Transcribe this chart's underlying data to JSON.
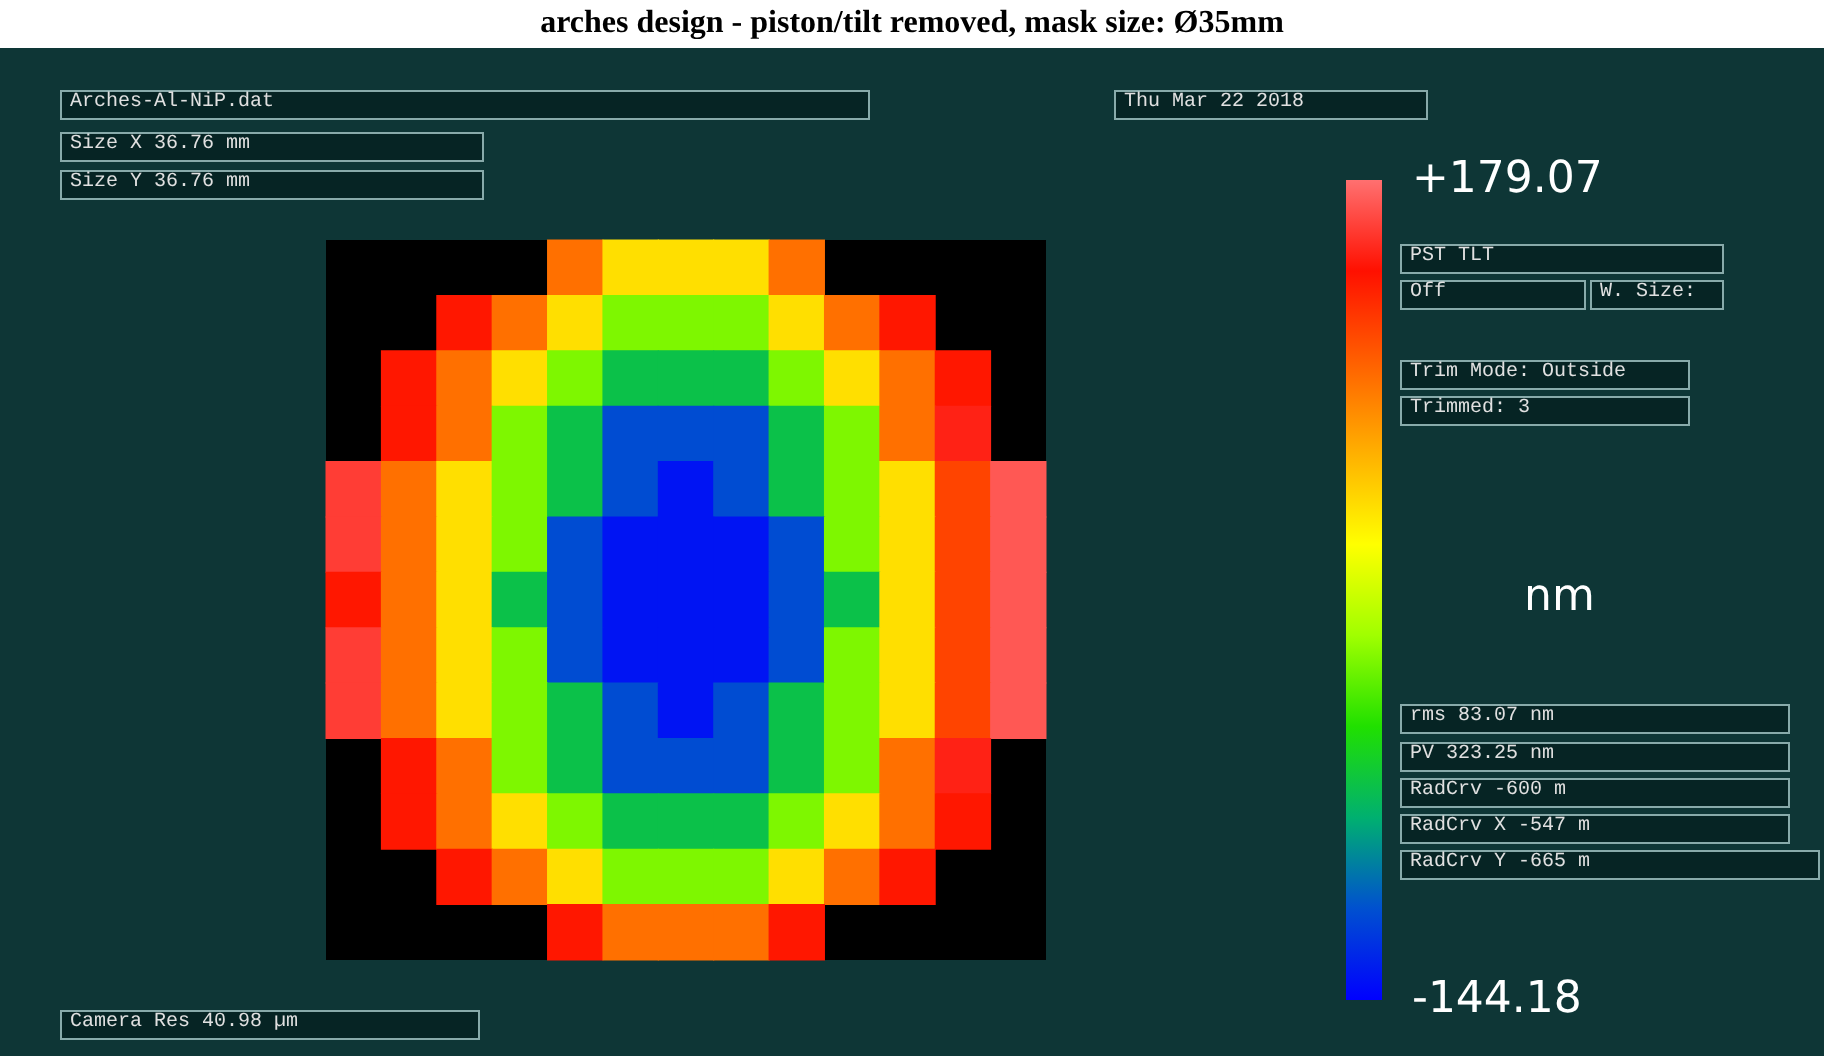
{
  "chart_data": {
    "type": "heatmap",
    "title": "arches design - piston/tilt removed, mask size: Ø35mm",
    "clabel": "nm",
    "categories": [
      null,
      null,
      null,
      null,
      null,
      null,
      null,
      null,
      null,
      null,
      null,
      null,
      null
    ],
    "y_categories": [
      null,
      null,
      null,
      null,
      null,
      null,
      null,
      null,
      null,
      null,
      null,
      null,
      null
    ],
    "clim": [
      -144.18,
      179.07
    ],
    "cticks": [
      {
        "value": 179.07,
        "label": "+179.07"
      },
      {
        "value": -144.18,
        "label": "-144.18"
      }
    ],
    "cells": [
      [
        null,
        null,
        null,
        null,
        100,
        50,
        50,
        50,
        100,
        null,
        null,
        null,
        null
      ],
      [
        null,
        null,
        140,
        100,
        50,
        -10,
        -10,
        -10,
        50,
        100,
        140,
        null,
        null
      ],
      [
        null,
        140,
        100,
        50,
        -10,
        -60,
        -60,
        -60,
        -10,
        50,
        100,
        140,
        null
      ],
      [
        null,
        140,
        100,
        -10,
        -60,
        -110,
        -110,
        -110,
        -60,
        -10,
        100,
        150,
        null
      ],
      [
        160,
        100,
        50,
        -10,
        -60,
        -110,
        -135,
        -110,
        -60,
        -10,
        50,
        120,
        170
      ],
      [
        160,
        100,
        50,
        -10,
        -110,
        -135,
        -135,
        -135,
        -110,
        -10,
        50,
        120,
        170
      ],
      [
        140,
        100,
        50,
        -60,
        -110,
        -135,
        -135,
        -135,
        -110,
        -60,
        50,
        120,
        170
      ],
      [
        160,
        100,
        50,
        -10,
        -110,
        -135,
        -135,
        -135,
        -110,
        -10,
        50,
        120,
        170
      ],
      [
        160,
        100,
        50,
        -10,
        -60,
        -110,
        -135,
        -110,
        -60,
        -10,
        50,
        120,
        170
      ],
      [
        null,
        140,
        100,
        -10,
        -60,
        -110,
        -110,
        -110,
        -60,
        -10,
        100,
        150,
        null
      ],
      [
        null,
        140,
        100,
        50,
        -10,
        -60,
        -60,
        -60,
        -10,
        50,
        100,
        140,
        null
      ],
      [
        null,
        null,
        140,
        100,
        50,
        -10,
        -10,
        -10,
        50,
        100,
        140,
        null,
        null
      ],
      [
        null,
        null,
        null,
        null,
        140,
        100,
        100,
        100,
        140,
        null,
        null,
        null,
        null
      ]
    ],
    "annotations": [
      "Arches-Al-NiP.dat",
      "Size X 36.76 mm",
      "Size Y 36.76 mm",
      "Thu Mar 22 2018",
      "PST TLT",
      "Off",
      "W. Size:",
      "Trim Mode: Outside",
      "Trimmed: 3",
      "rms 83.07 nm",
      "PV 323.25 nm",
      "RadCrv -600 m",
      "RadCrv X -547 m",
      "RadCrv Y -665 m",
      "Camera Res 40.98 µm"
    ]
  }
}
